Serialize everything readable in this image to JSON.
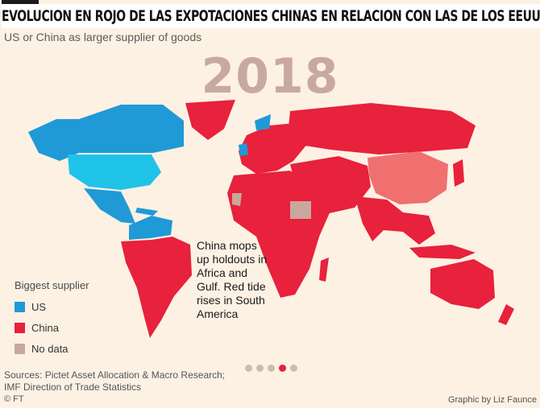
{
  "banner": {
    "title": "EVOLUCION EN ROJO DE LAS EXPOTACIONES CHINAS EN RELACION CON LAS DE LOS EEUU"
  },
  "header": {
    "subtitle": "US or China as larger supplier of goods",
    "year": "2018"
  },
  "annotation": {
    "lines": [
      "China mops",
      "up holdouts in",
      "Africa and",
      "Gulf. Red tide",
      "rises in South",
      "America"
    ]
  },
  "legend": {
    "title": "Biggest supplier",
    "items": [
      {
        "label": "US",
        "color": "#1f9ad6"
      },
      {
        "label": "China",
        "color": "#e8213c"
      },
      {
        "label": "No data",
        "color": "#c8a89c"
      }
    ]
  },
  "footer": {
    "sources_line1": "Sources: Pictet Asset Allocation & Macro Research;",
    "sources_line2": "IMF Direction of Trade Statistics",
    "copyright": "© FT",
    "credit": "Graphic by Liz Faunce"
  },
  "carousel": {
    "count": 5,
    "active_index": 3
  },
  "colors": {
    "us": "#1f9ad6",
    "us_light": "#20c3e8",
    "china": "#e8213c",
    "china_self": "#f07070",
    "no_data": "#c8a89c",
    "background": "#fdf1e4"
  }
}
